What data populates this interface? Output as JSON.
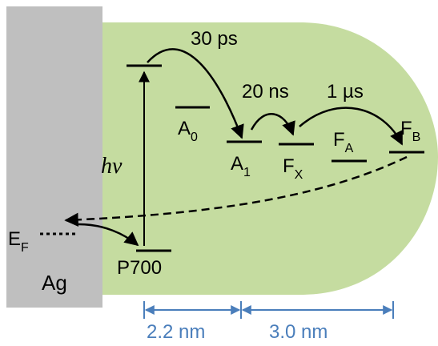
{
  "colors": {
    "protein": "#c5dca0",
    "metal": "#bfbfbf",
    "ink": "#000000",
    "scale": "#4a7ebb"
  },
  "metal": {
    "label": "Ag"
  },
  "fermi": {
    "label": "E",
    "sub": "F"
  },
  "photon": {
    "label": "hν"
  },
  "levels": {
    "p700": {
      "label": "P700"
    },
    "a0": {
      "label": "A",
      "sub": "0"
    },
    "a1": {
      "label": "A",
      "sub": "1"
    },
    "fx": {
      "label": "F",
      "sub": "X"
    },
    "fa": {
      "label": "F",
      "sub": "A"
    },
    "fb": {
      "label": "F",
      "sub": "B"
    }
  },
  "transfers": {
    "t1": "30 ps",
    "t2": "20 ns",
    "t3": "1 µs"
  },
  "scale_bar": {
    "d1": "2.2 nm",
    "d2": "3.0 nm"
  }
}
